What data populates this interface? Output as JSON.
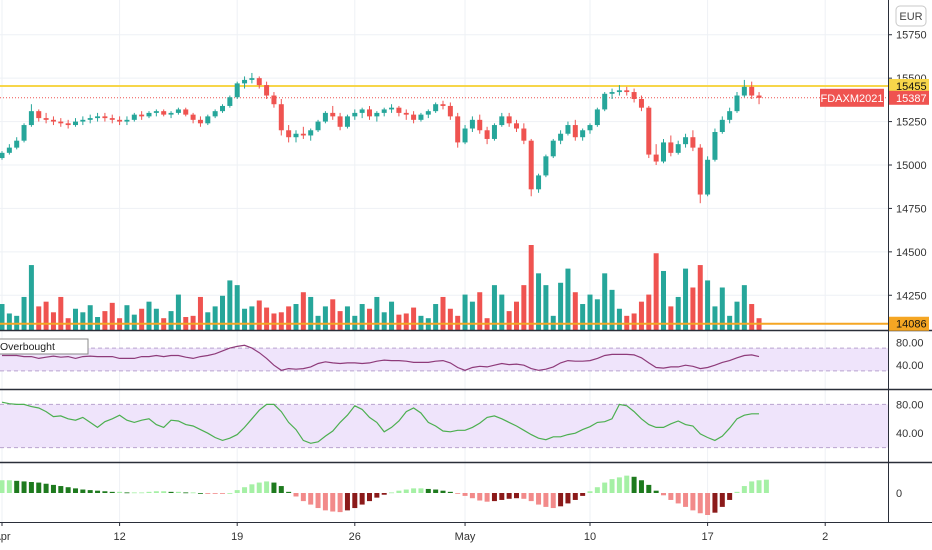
{
  "currency": "EUR",
  "symbol": "FDAXM2021",
  "overbought_label": "Overbought",
  "colors": {
    "up": "#26a69a",
    "down": "#ef5350",
    "vol_up": "#26a69a",
    "vol_down": "#ef5350",
    "resistance": "#f7d64a",
    "support": "#f5a623",
    "rsi_line": "#8e3b7a",
    "stoch_line": "#4caf50",
    "band_fill": "#efe4fb",
    "hist_pos_light": "#a5f0a5",
    "hist_pos_dark": "#1e7a1e",
    "hist_neg_light": "#f28a8a",
    "hist_neg_dark": "#8b1a1a",
    "price_tag": "#ef5350"
  },
  "price_axis": {
    "ticks": [
      15750,
      15500,
      15250,
      15000,
      14750,
      14500,
      14250
    ],
    "min": 14050,
    "max": 15950
  },
  "levels": {
    "resistance": {
      "value": 15455,
      "label": "15455"
    },
    "last": {
      "value": 15387,
      "label": "15387"
    },
    "support": {
      "value": 14086,
      "label": "14086"
    }
  },
  "osc1": {
    "ticks": [
      "80.00",
      "40.00"
    ],
    "upper": 70,
    "lower": 30
  },
  "osc2": {
    "ticks": [
      "80.00",
      "40.00"
    ],
    "upper": 80,
    "lower": 20
  },
  "osc3": {
    "ticks": [
      "0"
    ]
  },
  "x_axis": {
    "labels": [
      "Apr",
      "12",
      "19",
      "26",
      "May",
      "10",
      "17",
      "2"
    ]
  },
  "chart_data": {
    "type": "candlestick",
    "series": [
      {
        "name": "FDAXM2021",
        "values": [
          [
            15040,
            15080,
            15030,
            15070
          ],
          [
            15070,
            15120,
            15060,
            15100
          ],
          [
            15100,
            15160,
            15090,
            15140
          ],
          [
            15140,
            15240,
            15130,
            15230
          ],
          [
            15230,
            15350,
            15220,
            15310
          ],
          [
            15310,
            15320,
            15250,
            15270
          ],
          [
            15270,
            15300,
            15240,
            15260
          ],
          [
            15260,
            15280,
            15230,
            15250
          ],
          [
            15250,
            15270,
            15220,
            15240
          ],
          [
            15240,
            15260,
            15210,
            15230
          ],
          [
            15230,
            15270,
            15220,
            15250
          ],
          [
            15250,
            15280,
            15230,
            15260
          ],
          [
            15260,
            15290,
            15240,
            15270
          ],
          [
            15270,
            15300,
            15250,
            15280
          ],
          [
            15280,
            15300,
            15250,
            15270
          ],
          [
            15270,
            15290,
            15240,
            15260
          ],
          [
            15260,
            15280,
            15230,
            15250
          ],
          [
            15250,
            15280,
            15230,
            15260
          ],
          [
            15260,
            15300,
            15250,
            15290
          ],
          [
            15290,
            15310,
            15260,
            15280
          ],
          [
            15280,
            15310,
            15270,
            15300
          ],
          [
            15300,
            15320,
            15280,
            15310
          ],
          [
            15310,
            15320,
            15280,
            15290
          ],
          [
            15290,
            15310,
            15270,
            15300
          ],
          [
            15300,
            15330,
            15290,
            15320
          ],
          [
            15320,
            15330,
            15280,
            15290
          ],
          [
            15290,
            15300,
            15240,
            15260
          ],
          [
            15260,
            15280,
            15220,
            15240
          ],
          [
            15240,
            15290,
            15230,
            15280
          ],
          [
            15280,
            15320,
            15270,
            15310
          ],
          [
            15310,
            15350,
            15300,
            15340
          ],
          [
            15340,
            15400,
            15330,
            15390
          ],
          [
            15390,
            15480,
            15380,
            15470
          ],
          [
            15470,
            15510,
            15440,
            15490
          ],
          [
            15490,
            15530,
            15470,
            15500
          ],
          [
            15500,
            15510,
            15440,
            15460
          ],
          [
            15460,
            15480,
            15380,
            15400
          ],
          [
            15400,
            15420,
            15330,
            15350
          ],
          [
            15350,
            15380,
            15170,
            15200
          ],
          [
            15200,
            15230,
            15130,
            15160
          ],
          [
            15160,
            15200,
            15130,
            15180
          ],
          [
            15180,
            15220,
            15150,
            15170
          ],
          [
            15170,
            15210,
            15140,
            15200
          ],
          [
            15200,
            15260,
            15190,
            15250
          ],
          [
            15250,
            15310,
            15240,
            15300
          ],
          [
            15300,
            15340,
            15260,
            15280
          ],
          [
            15280,
            15300,
            15200,
            15220
          ],
          [
            15220,
            15290,
            15210,
            15280
          ],
          [
            15280,
            15320,
            15260,
            15300
          ],
          [
            15300,
            15330,
            15270,
            15320
          ],
          [
            15320,
            15340,
            15260,
            15280
          ],
          [
            15280,
            15310,
            15250,
            15300
          ],
          [
            15300,
            15330,
            15280,
            15320
          ],
          [
            15320,
            15350,
            15300,
            15330
          ],
          [
            15330,
            15340,
            15280,
            15300
          ],
          [
            15300,
            15320,
            15260,
            15290
          ],
          [
            15290,
            15310,
            15240,
            15260
          ],
          [
            15260,
            15300,
            15250,
            15290
          ],
          [
            15290,
            15320,
            15270,
            15310
          ],
          [
            15310,
            15360,
            15300,
            15350
          ],
          [
            15350,
            15370,
            15320,
            15340
          ],
          [
            15340,
            15360,
            15260,
            15280
          ],
          [
            15280,
            15300,
            15100,
            15130
          ],
          [
            15130,
            15230,
            15120,
            15210
          ],
          [
            15210,
            15280,
            15190,
            15260
          ],
          [
            15260,
            15290,
            15180,
            15200
          ],
          [
            15200,
            15220,
            15120,
            15150
          ],
          [
            15150,
            15240,
            15140,
            15230
          ],
          [
            15230,
            15300,
            15220,
            15280
          ],
          [
            15280,
            15300,
            15220,
            15240
          ],
          [
            15240,
            15260,
            15190,
            15210
          ],
          [
            15210,
            15240,
            15120,
            15140
          ],
          [
            15140,
            15150,
            14820,
            14860
          ],
          [
            14860,
            14950,
            14840,
            14940
          ],
          [
            14940,
            15060,
            14930,
            15050
          ],
          [
            15050,
            15150,
            15040,
            15140
          ],
          [
            15140,
            15200,
            15120,
            15180
          ],
          [
            15180,
            15250,
            15170,
            15230
          ],
          [
            15230,
            15260,
            15140,
            15160
          ],
          [
            15160,
            15210,
            15140,
            15200
          ],
          [
            15200,
            15240,
            15180,
            15230
          ],
          [
            15230,
            15330,
            15220,
            15320
          ],
          [
            15320,
            15420,
            15310,
            15410
          ],
          [
            15410,
            15440,
            15380,
            15420
          ],
          [
            15420,
            15460,
            15400,
            15430
          ],
          [
            15430,
            15450,
            15400,
            15420
          ],
          [
            15420,
            15440,
            15360,
            15380
          ],
          [
            15380,
            15400,
            15310,
            15330
          ],
          [
            15330,
            15340,
            15040,
            15060
          ],
          [
            15060,
            15120,
            15000,
            15020
          ],
          [
            15020,
            15150,
            15010,
            15130
          ],
          [
            15130,
            15170,
            15050,
            15070
          ],
          [
            15070,
            15140,
            15060,
            15120
          ],
          [
            15120,
            15180,
            15100,
            15160
          ],
          [
            15160,
            15200,
            15080,
            15100
          ],
          [
            15100,
            15120,
            14780,
            14830
          ],
          [
            14830,
            15050,
            14820,
            15030
          ],
          [
            15030,
            15210,
            15020,
            15190
          ],
          [
            15190,
            15280,
            15180,
            15260
          ],
          [
            15260,
            15330,
            15240,
            15310
          ],
          [
            15310,
            15420,
            15300,
            15400
          ],
          [
            15400,
            15490,
            15390,
            15450
          ],
          [
            15450,
            15480,
            15380,
            15400
          ],
          [
            15400,
            15420,
            15350,
            15387
          ]
        ]
      },
      {
        "name": "Volume",
        "values": [
          22,
          14,
          12,
          28,
          55,
          20,
          24,
          15,
          28,
          10,
          18,
          15,
          21,
          11,
          16,
          23,
          10,
          21,
          13,
          18,
          24,
          18,
          10,
          16,
          30,
          11,
          12,
          28,
          15,
          20,
          29,
          42,
          38,
          18,
          20,
          25,
          19,
          14,
          15,
          20,
          22,
          32,
          28,
          12,
          20,
          26,
          16,
          20,
          12,
          22,
          18,
          28,
          15,
          24,
          13,
          14,
          19,
          12,
          10,
          22,
          28,
          18,
          12,
          30,
          24,
          32,
          10,
          38,
          30,
          16,
          24,
          38,
          72,
          48,
          38,
          12,
          40,
          52,
          32,
          22,
          30,
          26,
          48,
          34,
          18,
          12,
          14,
          24,
          30,
          65,
          50,
          20,
          28,
          52,
          36,
          55,
          42,
          20,
          36,
          12,
          24,
          38,
          22,
          10
        ]
      },
      {
        "name": "Osc1",
        "values": [
          57,
          57,
          57,
          55,
          55,
          52,
          54,
          56,
          54,
          55,
          52,
          55,
          56,
          55,
          55,
          55,
          52,
          52,
          52,
          55,
          55,
          57,
          55,
          57,
          57,
          54,
          52,
          55,
          57,
          60,
          65,
          70,
          73,
          75,
          70,
          62,
          52,
          40,
          31,
          34,
          33,
          34,
          37,
          43,
          46,
          44,
          43,
          44,
          44,
          43,
          44,
          47,
          49,
          48,
          48,
          47,
          45,
          45,
          45,
          47,
          48,
          44,
          36,
          31,
          36,
          38,
          37,
          40,
          43,
          41,
          42,
          40,
          34,
          31,
          33,
          37,
          44,
          48,
          47,
          47,
          48,
          52,
          57,
          59,
          59,
          59,
          58,
          53,
          44,
          36,
          35,
          37,
          37,
          40,
          38,
          34,
          36,
          40,
          45,
          48,
          53,
          57,
          58,
          55
        ]
      },
      {
        "name": "Osc2",
        "values": [
          83,
          81,
          80,
          80,
          77,
          75,
          70,
          63,
          64,
          60,
          58,
          62,
          55,
          48,
          56,
          60,
          65,
          58,
          55,
          58,
          60,
          52,
          48,
          58,
          57,
          52,
          50,
          45,
          40,
          34,
          30,
          33,
          38,
          48,
          60,
          72,
          80,
          80,
          70,
          55,
          45,
          30,
          26,
          28,
          36,
          43,
          55,
          65,
          78,
          73,
          62,
          55,
          42,
          48,
          57,
          70,
          75,
          68,
          55,
          50,
          43,
          42,
          44,
          44,
          48,
          54,
          62,
          64,
          60,
          55,
          50,
          44,
          38,
          33,
          31,
          35,
          35,
          38,
          40,
          45,
          49,
          55,
          56,
          60,
          80,
          78,
          70,
          60,
          52,
          48,
          48,
          53,
          57,
          52,
          50,
          39,
          34,
          30,
          36,
          47,
          60,
          65,
          67,
          67
        ]
      },
      {
        "name": "Osc3",
        "values": [
          22,
          22,
          21,
          20,
          19,
          18,
          16,
          14,
          12,
          10,
          8,
          6,
          5,
          4,
          3,
          2,
          2,
          1,
          1,
          1,
          2,
          3,
          3,
          2,
          2,
          1,
          1,
          0,
          -1,
          -1,
          -1,
          0,
          5,
          10,
          15,
          18,
          20,
          18,
          12,
          2,
          -6,
          -14,
          -20,
          -26,
          -30,
          -32,
          -33,
          -30,
          -26,
          -20,
          -14,
          -8,
          -3,
          1,
          4,
          6,
          8,
          8,
          7,
          6,
          4,
          2,
          -1,
          -5,
          -9,
          -13,
          -15,
          -14,
          -12,
          -10,
          -9,
          -10,
          -14,
          -20,
          -24,
          -26,
          -23,
          -18,
          -12,
          -5,
          3,
          10,
          18,
          24,
          27,
          30,
          28,
          22,
          14,
          4,
          -4,
          -12,
          -18,
          -24,
          -30,
          -35,
          -38,
          -34,
          -24,
          -12,
          2,
          12,
          20,
          22,
          23
        ]
      }
    ],
    "price_range": [
      14050,
      15950
    ],
    "osc1_range": [
      0,
      100
    ],
    "osc2_range": [
      0,
      100
    ],
    "x_labels": [
      "Apr",
      "12",
      "19",
      "26",
      "May",
      "10",
      "17",
      "2"
    ],
    "x_label_positions": [
      0,
      16,
      32,
      48,
      63,
      80,
      96,
      112
    ]
  }
}
